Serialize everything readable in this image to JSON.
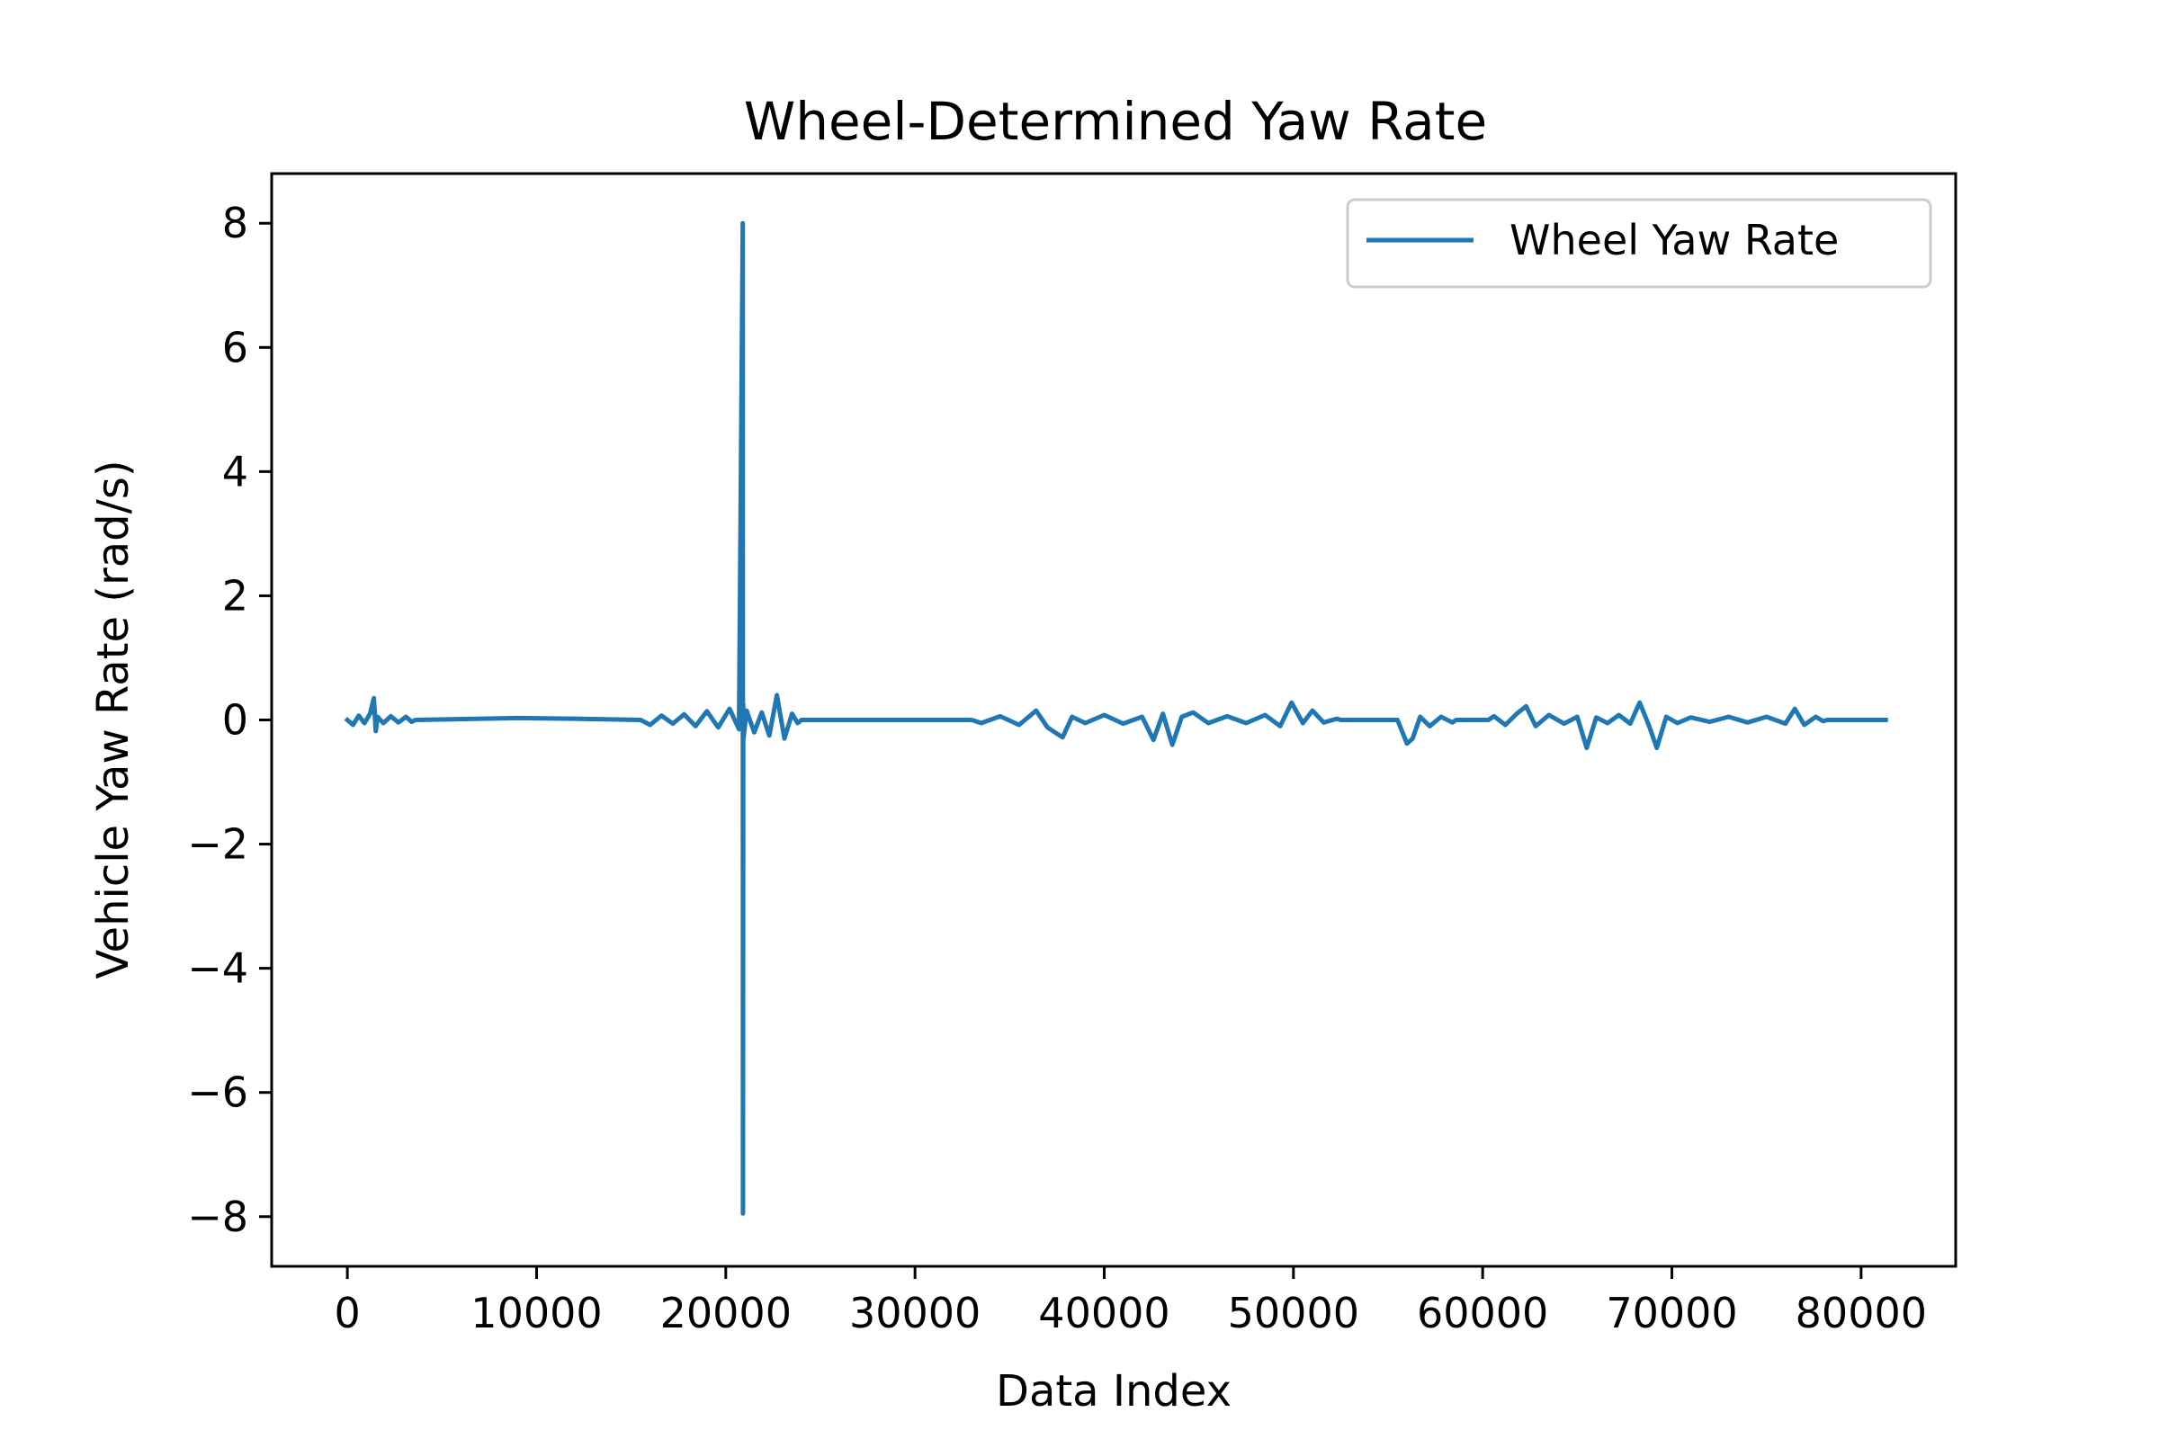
{
  "chart_data": {
    "type": "line",
    "title": "Wheel-Determined Yaw Rate",
    "xlabel": "Data Index",
    "ylabel": "Vehicle Yaw Rate (rad/s)",
    "xlim": [
      -4000,
      85000
    ],
    "ylim": [
      -8.8,
      8.8
    ],
    "xticks": [
      0,
      10000,
      20000,
      30000,
      40000,
      50000,
      60000,
      70000,
      80000
    ],
    "xtick_labels": [
      "0",
      "10000",
      "20000",
      "30000",
      "40000",
      "50000",
      "60000",
      "70000",
      "80000"
    ],
    "yticks": [
      -8,
      -6,
      -4,
      -2,
      0,
      2,
      4,
      6,
      8
    ],
    "ytick_labels": [
      "−8",
      "−6",
      "−4",
      "−2",
      "0",
      "2",
      "4",
      "6",
      "8"
    ],
    "grid": false,
    "legend": {
      "placement": "top-right",
      "entries": [
        "Wheel Yaw Rate"
      ]
    },
    "series": [
      {
        "name": "Wheel Yaw Rate",
        "color": "#1f77b4",
        "x": [
          0,
          300,
          600,
          900,
          1200,
          1400,
          1500,
          1600,
          1900,
          2300,
          2700,
          3100,
          3400,
          3600,
          9000,
          12000,
          15500,
          16000,
          16600,
          17200,
          17800,
          18400,
          19000,
          19600,
          20200,
          20700,
          20900,
          20910,
          20920,
          20930,
          21100,
          21500,
          21900,
          22300,
          22700,
          23100,
          23500,
          23800,
          24000,
          33000,
          33500,
          34500,
          35500,
          36400,
          37000,
          37800,
          38300,
          39000,
          40000,
          41000,
          42000,
          42600,
          43100,
          43600,
          44100,
          44700,
          45500,
          46500,
          47500,
          48500,
          49300,
          49900,
          50500,
          51000,
          51600,
          52300,
          52500,
          55500,
          56000,
          56300,
          56700,
          57200,
          57800,
          58400,
          58600,
          60300,
          60600,
          61200,
          61800,
          62300,
          62800,
          63500,
          64300,
          65000,
          65500,
          66000,
          66600,
          67200,
          67800,
          68300,
          68800,
          69200,
          69700,
          70300,
          71000,
          72000,
          73000,
          74000,
          75000,
          76000,
          76500,
          77000,
          77600,
          78000,
          78200,
          81300
        ],
        "y": [
          0.0,
          -0.08,
          0.07,
          -0.05,
          0.1,
          0.35,
          -0.18,
          0.05,
          -0.05,
          0.06,
          -0.04,
          0.05,
          -0.03,
          0.0,
          0.03,
          0.02,
          0.0,
          -0.08,
          0.07,
          -0.06,
          0.09,
          -0.1,
          0.14,
          -0.12,
          0.18,
          -0.15,
          8.0,
          -7.95,
          0.25,
          -0.3,
          0.15,
          -0.2,
          0.12,
          -0.25,
          0.4,
          -0.3,
          0.1,
          -0.05,
          0.0,
          0.0,
          -0.05,
          0.06,
          -0.08,
          0.15,
          -0.12,
          -0.28,
          0.05,
          -0.05,
          0.08,
          -0.06,
          0.05,
          -0.32,
          0.1,
          -0.4,
          0.05,
          0.12,
          -0.05,
          0.06,
          -0.05,
          0.08,
          -0.1,
          0.28,
          -0.05,
          0.15,
          -0.04,
          0.02,
          0.0,
          0.0,
          -0.38,
          -0.3,
          0.05,
          -0.1,
          0.05,
          -0.04,
          0.0,
          0.0,
          0.06,
          -0.08,
          0.1,
          0.22,
          -0.1,
          0.08,
          -0.06,
          0.05,
          -0.45,
          0.04,
          -0.05,
          0.08,
          -0.06,
          0.28,
          -0.1,
          -0.45,
          0.05,
          -0.05,
          0.04,
          -0.03,
          0.05,
          -0.04,
          0.05,
          -0.06,
          0.18,
          -0.08,
          0.05,
          -0.02,
          0.0,
          0.0
        ]
      }
    ]
  }
}
